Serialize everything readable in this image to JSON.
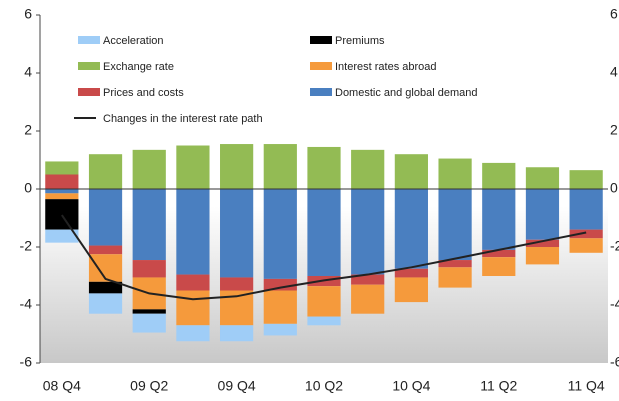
{
  "chart_data": {
    "type": "bar",
    "categories": [
      "08 Q4",
      null,
      "09 Q2",
      null,
      "09 Q4",
      null,
      "10 Q2",
      null,
      "10 Q4",
      null,
      "11 Q2",
      null,
      "11 Q4"
    ],
    "series": [
      {
        "name": "Acceleration",
        "color": "#9fcdf7",
        "values": [
          -0.45,
          -0.7,
          -0.65,
          -0.55,
          -0.55,
          -0.4,
          -0.3,
          0,
          0,
          0,
          0,
          0,
          0
        ]
      },
      {
        "name": "Premiums",
        "color": "#000000",
        "values": [
          -1.05,
          -0.4,
          -0.15,
          0,
          0,
          0,
          0,
          0,
          0,
          0,
          0,
          0,
          0
        ]
      },
      {
        "name": "Exchange rate",
        "color": "#93bb54",
        "values": [
          0.45,
          1.2,
          1.35,
          1.5,
          1.55,
          1.55,
          1.45,
          1.35,
          1.2,
          1.05,
          0.9,
          0.75,
          0.65
        ]
      },
      {
        "name": "Interest rates abroad",
        "color": "#f59a3c",
        "values": [
          -0.2,
          -0.95,
          -1.1,
          -1.2,
          -1.2,
          -1.15,
          -1.05,
          -1.0,
          -0.85,
          -0.7,
          -0.65,
          -0.6,
          -0.5
        ]
      },
      {
        "name": "Prices and costs",
        "color": "#c94a4a",
        "values": [
          0.5,
          -0.3,
          -0.6,
          -0.55,
          -0.45,
          -0.4,
          -0.35,
          -0.35,
          -0.3,
          -0.25,
          -0.25,
          -0.25,
          -0.3
        ]
      },
      {
        "name": "Domestic and global demand",
        "color": "#4a7fc0",
        "values": [
          -0.15,
          -1.95,
          -2.45,
          -2.95,
          -3.05,
          -3.1,
          -3.0,
          -2.95,
          -2.75,
          -2.45,
          -2.1,
          -1.75,
          -1.4
        ]
      },
      {
        "name": "Changes in the interest rate path",
        "color": "#222222",
        "type": "line",
        "values": [
          -0.9,
          -3.1,
          -3.6,
          -3.8,
          -3.7,
          -3.4,
          -3.15,
          -2.95,
          -2.7,
          -2.4,
          -2.1,
          -1.8,
          -1.5
        ]
      }
    ],
    "ylim": [
      -6,
      6
    ],
    "yticks": [
      -6,
      -4,
      -2,
      0,
      2,
      4,
      6
    ],
    "y2lim": [
      -6,
      6
    ],
    "y2ticks": [
      -6,
      -4,
      -2,
      0,
      2,
      4,
      6
    ]
  }
}
